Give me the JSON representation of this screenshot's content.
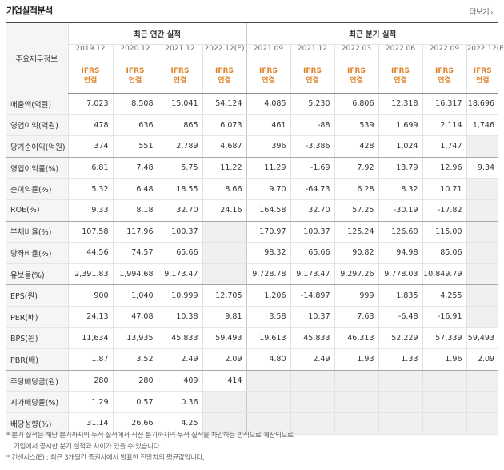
{
  "title": "기업실적분석",
  "more_label": "더보기",
  "header": {
    "row_label": "주요재무정보",
    "annual_title": "최근 연간 실적",
    "quarter_title": "최근 분기 실적",
    "annual_periods": [
      "2019.12",
      "2020.12",
      "2021.12",
      "2022.12(E)"
    ],
    "quarter_periods": [
      "2021.09",
      "2021.12",
      "2022.03",
      "2022.06",
      "2022.09",
      "2022.12(E)"
    ],
    "basis_top": "IFRS",
    "basis_bottom": "연결"
  },
  "rows": [
    {
      "label": "매출액(억원)",
      "values": [
        "7,023",
        "8,508",
        "15,041",
        "54,124",
        "4,085",
        "5,230",
        "6,806",
        "12,318",
        "16,317",
        "18,696"
      ]
    },
    {
      "label": "영업이익(억원)",
      "values": [
        "478",
        "636",
        "865",
        "6,073",
        "461",
        "-88",
        "539",
        "1,699",
        "2,114",
        "1,746"
      ]
    },
    {
      "label": "당기순이익(억원)",
      "values": [
        "374",
        "551",
        "2,789",
        "4,687",
        "396",
        "-3,386",
        "428",
        "1,024",
        "1,747",
        ""
      ]
    },
    {
      "label": "영업이익률(%)",
      "values": [
        "6.81",
        "7.48",
        "5.75",
        "11.22",
        "11.29",
        "-1.69",
        "7.92",
        "13.79",
        "12.96",
        "9.34"
      ]
    },
    {
      "label": "순이익률(%)",
      "values": [
        "5.32",
        "6.48",
        "18.55",
        "8.66",
        "9.70",
        "-64.73",
        "6.28",
        "8.32",
        "10.71",
        ""
      ]
    },
    {
      "label": "ROE(%)",
      "values": [
        "9.33",
        "8.18",
        "32.70",
        "24.16",
        "164.58",
        "32.70",
        "57.25",
        "-30.19",
        "-17.82",
        ""
      ]
    },
    {
      "label": "부채비율(%)",
      "values": [
        "107.58",
        "117.96",
        "100.37",
        "",
        "170.97",
        "100.37",
        "125.24",
        "126.60",
        "115.00",
        ""
      ]
    },
    {
      "label": "당좌비율(%)",
      "values": [
        "44.56",
        "74.57",
        "65.66",
        "",
        "98.32",
        "65.66",
        "90.82",
        "94.98",
        "85.06",
        ""
      ]
    },
    {
      "label": "유보율(%)",
      "values": [
        "2,391.83",
        "1,994.68",
        "9,173.47",
        "",
        "9,728.78",
        "9,173.47",
        "9,297.26",
        "9,778.03",
        "10,849.79",
        ""
      ]
    },
    {
      "label": "EPS(원)",
      "values": [
        "900",
        "1,040",
        "10,999",
        "12,705",
        "1,206",
        "-14,897",
        "999",
        "1,835",
        "4,255",
        ""
      ]
    },
    {
      "label": "PER(배)",
      "values": [
        "24.13",
        "47.08",
        "10.38",
        "9.81",
        "3.58",
        "10.37",
        "7.63",
        "-6.48",
        "-16.91",
        ""
      ]
    },
    {
      "label": "BPS(원)",
      "values": [
        "11,634",
        "13,935",
        "45,833",
        "59,493",
        "19,613",
        "45,833",
        "46,313",
        "52,229",
        "57,339",
        "59,493"
      ]
    },
    {
      "label": "PBR(배)",
      "values": [
        "1.87",
        "3.52",
        "2.49",
        "2.09",
        "4.80",
        "2.49",
        "1.93",
        "1.33",
        "1.96",
        "2.09"
      ]
    },
    {
      "label": "주당배당금(원)",
      "values": [
        "280",
        "280",
        "409",
        "414",
        "",
        "",
        "",
        "",
        "",
        ""
      ]
    },
    {
      "label": "시가배당률(%)",
      "values": [
        "1.29",
        "0.57",
        "0.36",
        "",
        "",
        "",
        "",
        "",
        "",
        ""
      ]
    },
    {
      "label": "배당성향(%)",
      "values": [
        "31.14",
        "26.66",
        "4.25",
        "",
        "",
        "",
        "",
        "",
        "",
        ""
      ]
    }
  ],
  "notes": [
    "* 분기 실적은 해당 분기까지의 누적 실적에서 직전 분기까지의 누적 실적을 차감하는 방식으로 계산되므로,",
    "기업에서 공시한 분기 실적과 차이가 있을 수 있습니다.",
    "* 컨센서스(E) : 최근 3개월간 증권사에서 발표한 전망치의 평균값입니다."
  ]
}
